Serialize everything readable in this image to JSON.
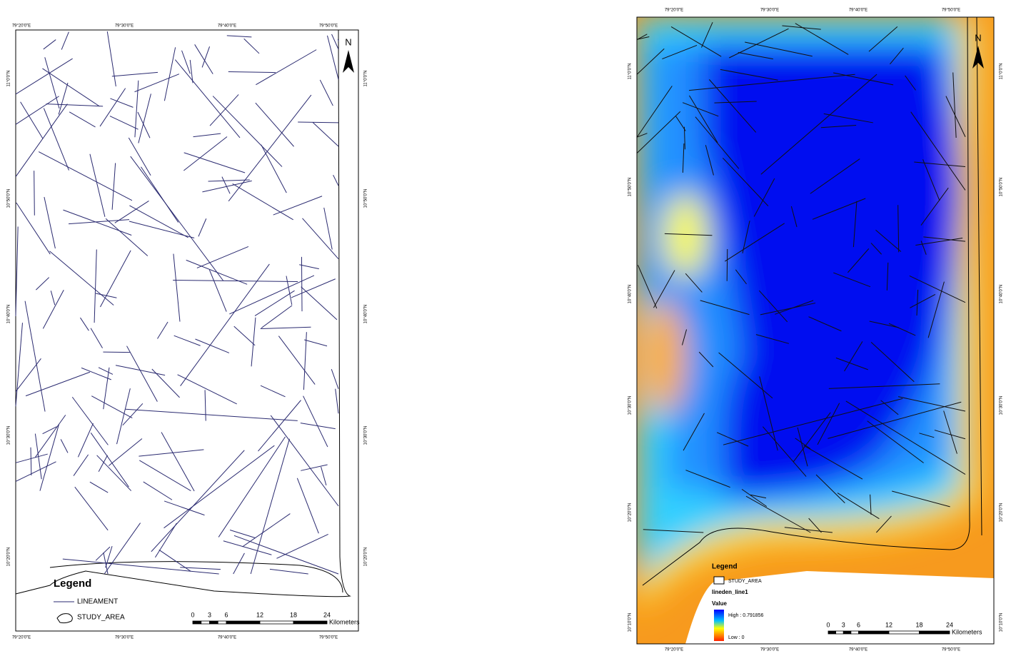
{
  "maps": [
    {
      "top_labels": [
        "79°20'0\"E",
        "79°30'0\"E",
        "79°40'0\"E",
        "79°50'0\"E"
      ],
      "bottom_labels": [
        "79°20'0\"E",
        "79°30'0\"E",
        "79°40'0\"E",
        "79°50'0\"E"
      ],
      "left_labels": [
        "11°0'0\"N",
        "10°50'0\"N",
        "10°40'0\"N",
        "10°30'0\"N",
        "10°20'0\"N"
      ],
      "right_labels": [
        "11°0'0\"N",
        "10°50'0\"N",
        "10°40'0\"N",
        "10°30'0\"N",
        "10°20'0\"N"
      ],
      "north": "N",
      "legend": {
        "title": "Legend",
        "items": [
          "LINEAMENT",
          "STUDY_AREA"
        ]
      },
      "scale": {
        "ticks": [
          "0",
          "3",
          "6",
          "12",
          "18",
          "24"
        ],
        "unit": "Kilometers"
      }
    },
    {
      "top_labels": [
        "79°20'0\"E",
        "79°30'0\"E",
        "79°40'0\"E",
        "79°50'0\"E"
      ],
      "bottom_labels": [
        "79°20'0\"E",
        "79°30'0\"E",
        "79°40'0\"E",
        "79°50'0\"E"
      ],
      "left_labels": [
        "11°0'0\"N",
        "10°50'0\"N",
        "10°40'0\"N",
        "10°30'0\"N",
        "10°20'0\"N",
        "10°10'0\"N"
      ],
      "right_labels": [
        "11°0'0\"N",
        "10°50'0\"N",
        "10°40'0\"N",
        "10°30'0\"N",
        "10°20'0\"N",
        "10°10'0\"N"
      ],
      "north": "N",
      "legend": {
        "title": "Legend",
        "items": [
          "STUDY_AREA"
        ],
        "layer": "lineden_line1",
        "field": "Value",
        "high": "High : 0.791856",
        "low": "Low : 0"
      },
      "scale": {
        "ticks": [
          "0",
          "3",
          "6",
          "12",
          "18",
          "24"
        ],
        "unit": "Kilometers"
      }
    }
  ]
}
